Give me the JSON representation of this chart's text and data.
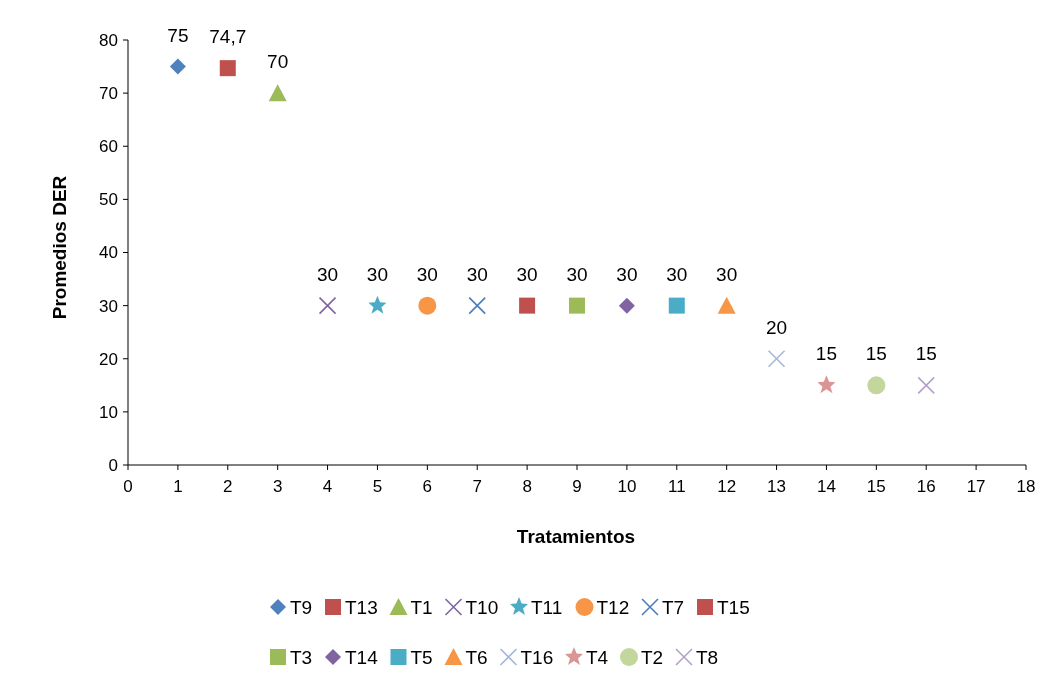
{
  "chart_data": {
    "type": "scatter",
    "xlabel": "Tratamientos",
    "ylabel": "Promedios  DER",
    "xlim": [
      0,
      18
    ],
    "xticks": [
      0,
      1,
      2,
      3,
      4,
      5,
      6,
      7,
      8,
      9,
      10,
      11,
      12,
      13,
      14,
      15,
      16,
      17,
      18
    ],
    "ylim": [
      0,
      80
    ],
    "yticks": [
      0,
      10,
      20,
      30,
      40,
      50,
      60,
      70,
      80
    ],
    "grid": false,
    "legend": "bottom",
    "series": [
      {
        "name": "T9",
        "color": "#4f81bd",
        "marker": "diamond",
        "x": [
          1
        ],
        "values": [
          75
        ],
        "value_labels": [
          "75"
        ]
      },
      {
        "name": "T13",
        "color": "#c0504d",
        "marker": "square",
        "x": [
          2
        ],
        "values": [
          74.7
        ],
        "value_labels": [
          "74,7"
        ]
      },
      {
        "name": "T1",
        "color": "#9bbb59",
        "marker": "triangle",
        "x": [
          3
        ],
        "values": [
          70
        ],
        "value_labels": [
          "70"
        ]
      },
      {
        "name": "T10",
        "color": "#8064a2",
        "marker": "cross",
        "x": [
          4
        ],
        "values": [
          30
        ],
        "value_labels": [
          "30"
        ]
      },
      {
        "name": "T11",
        "color": "#4bacc6",
        "marker": "star",
        "x": [
          5
        ],
        "values": [
          30
        ],
        "value_labels": [
          "30"
        ]
      },
      {
        "name": "T12",
        "color": "#f79646",
        "marker": "circle",
        "x": [
          6
        ],
        "values": [
          30
        ],
        "value_labels": [
          "30"
        ]
      },
      {
        "name": "T7",
        "color": "#4a7ebb",
        "marker": "cross",
        "x": [
          7
        ],
        "values": [
          30
        ],
        "value_labels": [
          "30"
        ]
      },
      {
        "name": "T15",
        "color": "#c0504d",
        "marker": "square",
        "x": [
          8
        ],
        "values": [
          30
        ],
        "value_labels": [
          "30"
        ]
      },
      {
        "name": "T3",
        "color": "#9bbb59",
        "marker": "square",
        "x": [
          9
        ],
        "values": [
          30
        ],
        "value_labels": [
          "30"
        ]
      },
      {
        "name": "T14",
        "color": "#8064a2",
        "marker": "diamond",
        "x": [
          10
        ],
        "values": [
          30
        ],
        "value_labels": [
          "30"
        ]
      },
      {
        "name": "T5",
        "color": "#4bacc6",
        "marker": "square",
        "x": [
          11
        ],
        "values": [
          30
        ],
        "value_labels": [
          "30"
        ]
      },
      {
        "name": "T6",
        "color": "#f79646",
        "marker": "triangle",
        "x": [
          12
        ],
        "values": [
          30
        ],
        "value_labels": [
          "30"
        ]
      },
      {
        "name": "T16",
        "color": "#a5b8d9",
        "marker": "cross",
        "x": [
          13
        ],
        "values": [
          20
        ],
        "value_labels": [
          "20"
        ]
      },
      {
        "name": "T4",
        "color": "#d99694",
        "marker": "star",
        "x": [
          14
        ],
        "values": [
          15
        ],
        "value_labels": [
          "15"
        ]
      },
      {
        "name": "T2",
        "color": "#c3d69b",
        "marker": "circle",
        "x": [
          15
        ],
        "values": [
          15
        ],
        "value_labels": [
          "15"
        ]
      },
      {
        "name": "T8",
        "color": "#b3a2c7",
        "marker": "cross",
        "x": [
          16
        ],
        "values": [
          15
        ],
        "value_labels": [
          "15"
        ]
      }
    ]
  }
}
